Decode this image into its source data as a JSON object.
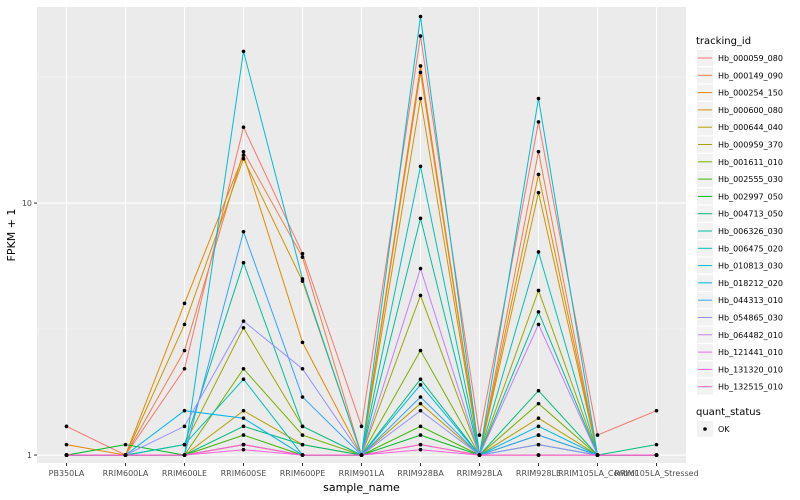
{
  "chart_data": {
    "type": "line",
    "xlabel": "sample_name",
    "ylabel": "FPKM + 1",
    "y_scale": "log10",
    "ylim": [
      0.93,
      60
    ],
    "y_ticks": [
      1,
      10
    ],
    "y_tick_labels": [
      "1",
      "10"
    ],
    "categories": [
      "PB350LA",
      "RRIM600LA",
      "RRIM600LE",
      "RRIM600SE",
      "RRIM600PE",
      "RRIM901LA",
      "RRIM928BA",
      "RRIM928LA",
      "RRIM928LE",
      "RRIM105LA_Control",
      "RRIM105LA_Stressed"
    ],
    "grid": true,
    "background": "#ebebeb",
    "legend_position": "right",
    "legend_title": "tracking_id",
    "series": [
      {
        "name": "Hb_000059_080",
        "color": "#F8766D",
        "values": [
          1.3,
          1.0,
          2.2,
          20,
          6.3,
          1.3,
          46,
          1.2,
          21,
          1.2,
          1.5
        ]
      },
      {
        "name": "Hb_000149_090",
        "color": "#F07F4D",
        "values": [
          1.0,
          1.0,
          2.6,
          16,
          6.1,
          1.0,
          33,
          1.0,
          16,
          1.0,
          1.0
        ]
      },
      {
        "name": "Hb_000254_150",
        "color": "#E18A00",
        "values": [
          1.1,
          1.0,
          4.0,
          15.5,
          2.8,
          1.0,
          35,
          1.0,
          13,
          1.0,
          1.0
        ]
      },
      {
        "name": "Hb_000600_080",
        "color": "#CF9400",
        "values": [
          1.0,
          1.0,
          3.3,
          15,
          4.9,
          1.0,
          26,
          1.0,
          11,
          1.0,
          1.0
        ]
      },
      {
        "name": "Hb_000644_040",
        "color": "#B79F00",
        "values": [
          1.0,
          1.0,
          1.0,
          1.5,
          1.1,
          1.0,
          1.6,
          1.0,
          1.4,
          1.0,
          1.0
        ]
      },
      {
        "name": "Hb_000959_370",
        "color": "#9DA700",
        "values": [
          1.0,
          1.0,
          1.1,
          3.2,
          1.3,
          1.0,
          4.3,
          1.0,
          4.5,
          1.0,
          1.0
        ]
      },
      {
        "name": "Hb_001611_010",
        "color": "#79AF00",
        "values": [
          1.0,
          1.0,
          1.0,
          2.2,
          1.2,
          1.0,
          2.6,
          1.0,
          1.6,
          1.0,
          1.0
        ]
      },
      {
        "name": "Hb_002555_030",
        "color": "#3BB300",
        "values": [
          1.0,
          1.0,
          1.0,
          1.2,
          1.0,
          1.0,
          1.3,
          1.0,
          1.2,
          1.0,
          1.0
        ]
      },
      {
        "name": "Hb_002997_050",
        "color": "#00B81F",
        "values": [
          1.0,
          1.1,
          1.0,
          1.1,
          1.0,
          1.0,
          1.2,
          1.0,
          1.1,
          1.0,
          1.0
        ]
      },
      {
        "name": "Hb_004713_050",
        "color": "#00BC77",
        "values": [
          1.0,
          1.0,
          1.0,
          1.3,
          1.1,
          1.0,
          2.0,
          1.0,
          1.8,
          1.0,
          1.1
        ]
      },
      {
        "name": "Hb_006326_030",
        "color": "#00BE9B",
        "values": [
          1.0,
          1.0,
          1.1,
          5.8,
          1.3,
          1.0,
          8.7,
          1.0,
          3.7,
          1.0,
          1.0
        ]
      },
      {
        "name": "Hb_006475_020",
        "color": "#00C0B8",
        "values": [
          1.0,
          1.0,
          1.1,
          2.0,
          1.0,
          1.0,
          14,
          1.0,
          6.4,
          1.0,
          1.0
        ]
      },
      {
        "name": "Hb_010813_030",
        "color": "#00BDD3",
        "values": [
          1.0,
          1.0,
          1.0,
          40,
          5.0,
          1.0,
          55,
          1.0,
          26,
          1.0,
          1.0
        ]
      },
      {
        "name": "Hb_018212_020",
        "color": "#00B6EB",
        "values": [
          1.0,
          1.0,
          1.5,
          1.4,
          1.0,
          1.0,
          1.9,
          1.0,
          1.3,
          1.0,
          1.0
        ]
      },
      {
        "name": "Hb_044313_010",
        "color": "#35A2FF",
        "values": [
          1.0,
          1.0,
          1.0,
          7.7,
          1.7,
          1.0,
          1.7,
          1.0,
          1.2,
          1.0,
          1.0
        ]
      },
      {
        "name": "Hb_054865_030",
        "color": "#9590FF",
        "values": [
          1.0,
          1.0,
          1.3,
          3.4,
          2.2,
          1.0,
          1.5,
          1.0,
          1.1,
          1.0,
          1.0
        ]
      },
      {
        "name": "Hb_064482_010",
        "color": "#C77CFF",
        "values": [
          1.0,
          1.0,
          1.0,
          1.1,
          1.0,
          1.0,
          5.5,
          1.0,
          3.3,
          1.0,
          1.0
        ]
      },
      {
        "name": "Hb_121441_010",
        "color": "#E76BF3",
        "values": [
          1.0,
          1.0,
          1.0,
          1.1,
          1.0,
          1.0,
          1.1,
          1.0,
          1.0,
          1.0,
          1.0
        ]
      },
      {
        "name": "Hb_131320_010",
        "color": "#FA62DB",
        "values": [
          1.0,
          1.0,
          1.0,
          1.05,
          1.0,
          1.0,
          1.05,
          1.0,
          1.0,
          1.0,
          1.0
        ]
      },
      {
        "name": "Hb_132515_010",
        "color": "#FF62BC",
        "values": [
          1.0,
          1.0,
          1.0,
          1.1,
          1.0,
          1.0,
          1.1,
          1.0,
          1.0,
          1.0,
          1.0
        ]
      }
    ],
    "point_legend": {
      "title": "quant_status",
      "entries": [
        "OK"
      ]
    }
  }
}
